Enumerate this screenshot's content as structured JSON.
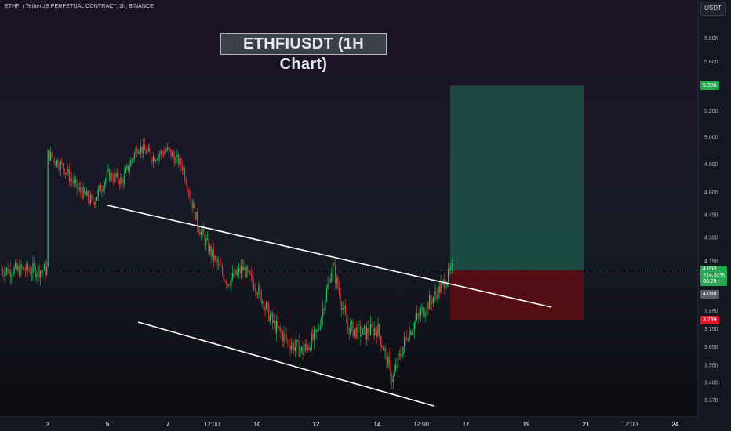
{
  "header": {
    "symbol_line": "ETHFI / TetherUS PERPETUAL CONTRACT, 1h, BINANCE",
    "title": "ETHFIUSDT (1H Chart)",
    "currency": "USDT"
  },
  "price_tags": {
    "target": "5.396",
    "current_price": "4.093",
    "current_change": "+14.32%",
    "current_countdown": "33:28",
    "reference": "4.086",
    "stop": "3.799"
  },
  "colors": {
    "background": "#131722",
    "up": "#26a69a",
    "candle_up": "#22c55e",
    "candle_down": "#e53935",
    "profit_zone": "#1f5c4d",
    "loss_zone": "#5c0d12",
    "trendline": "#ffffff"
  },
  "chart_data": {
    "type": "candlestick",
    "y_axis": {
      "ticks": [
        "5.800",
        "5.600",
        "5.396",
        "5.200",
        "5.000",
        "4.800",
        "4.600",
        "4.450",
        "4.300",
        "4.150",
        "3.850",
        "3.750",
        "3.650",
        "3.550",
        "3.460",
        "3.370"
      ],
      "scale": "log",
      "range": [
        3.33,
        6.0
      ]
    },
    "x_axis": {
      "ticks": [
        "3",
        "5",
        "7",
        "12:00",
        "10",
        "12",
        "14",
        "12:00",
        "17",
        "19",
        "21",
        "12:00",
        "24"
      ]
    },
    "series": [
      {
        "points": [
          [
            "3",
            4.87
          ],
          [
            "3",
            4.78
          ],
          [
            "4",
            4.62
          ],
          [
            "4",
            4.53
          ],
          [
            "5",
            4.72
          ],
          [
            "5",
            4.68
          ],
          [
            "6",
            4.93
          ],
          [
            "6",
            4.85
          ],
          [
            "7",
            4.9
          ],
          [
            "7",
            4.78
          ],
          [
            "8",
            4.38
          ],
          [
            "8",
            4.18
          ],
          [
            "9",
            4.02
          ],
          [
            "9",
            4.1
          ],
          [
            "10",
            3.98
          ],
          [
            "10",
            3.78
          ],
          [
            "11",
            3.68
          ],
          [
            "11",
            3.62
          ],
          [
            "12",
            3.72
          ],
          [
            "12",
            4.12
          ],
          [
            "13",
            3.76
          ],
          [
            "13",
            3.72
          ],
          [
            "14",
            3.75
          ],
          [
            "14",
            3.47
          ],
          [
            "15",
            3.72
          ],
          [
            "15",
            3.85
          ],
          [
            "16",
            3.96
          ],
          [
            "16",
            4.093
          ]
        ]
      }
    ],
    "trendlines": [
      {
        "from": [
          "5",
          4.5
        ],
        "to": [
          "19",
          3.85
        ]
      },
      {
        "from": [
          "6",
          3.8
        ],
        "to": [
          "15",
          3.34
        ]
      }
    ],
    "position": {
      "type": "long",
      "entry": 4.093,
      "target": 5.396,
      "stop": 3.799
    }
  }
}
